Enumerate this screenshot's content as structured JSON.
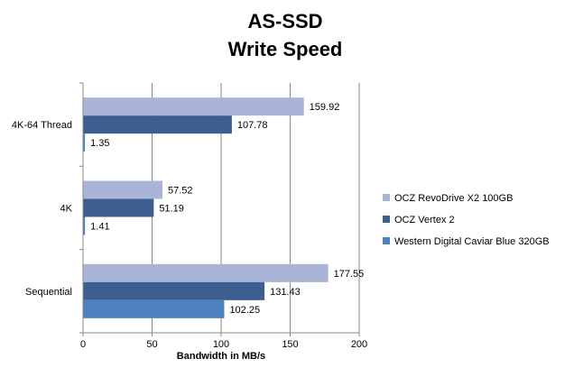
{
  "chart_data": {
    "type": "bar",
    "orientation": "horizontal",
    "title": [
      "AS-SSD",
      "Write Speed"
    ],
    "xlabel": "Bandwidth  in MB/s",
    "ylabel": "",
    "xlim": [
      0,
      200
    ],
    "xticks": [
      "0",
      "50",
      "100",
      "150",
      "200"
    ],
    "grid": true,
    "legend_position": "right",
    "categories": [
      "4K-64 Thread",
      "4K",
      "Sequential"
    ],
    "series": [
      {
        "name": "OCZ RevoDrive X2 100GB",
        "color": "#aab4d6",
        "values": [
          159.92,
          57.52,
          177.55
        ],
        "labels": [
          "159.92",
          "57.52",
          "177.55"
        ]
      },
      {
        "name": "OCZ Vertex 2",
        "color": "#3c5f8f",
        "values": [
          107.78,
          51.19,
          131.43
        ],
        "labels": [
          "107.78",
          "51.19",
          "131.43"
        ]
      },
      {
        "name": "Western Digital Caviar Blue 320GB",
        "color": "#4d80be",
        "values": [
          1.35,
          1.41,
          102.25
        ],
        "labels": [
          "1.35",
          "1.41",
          "102.25"
        ]
      }
    ]
  }
}
